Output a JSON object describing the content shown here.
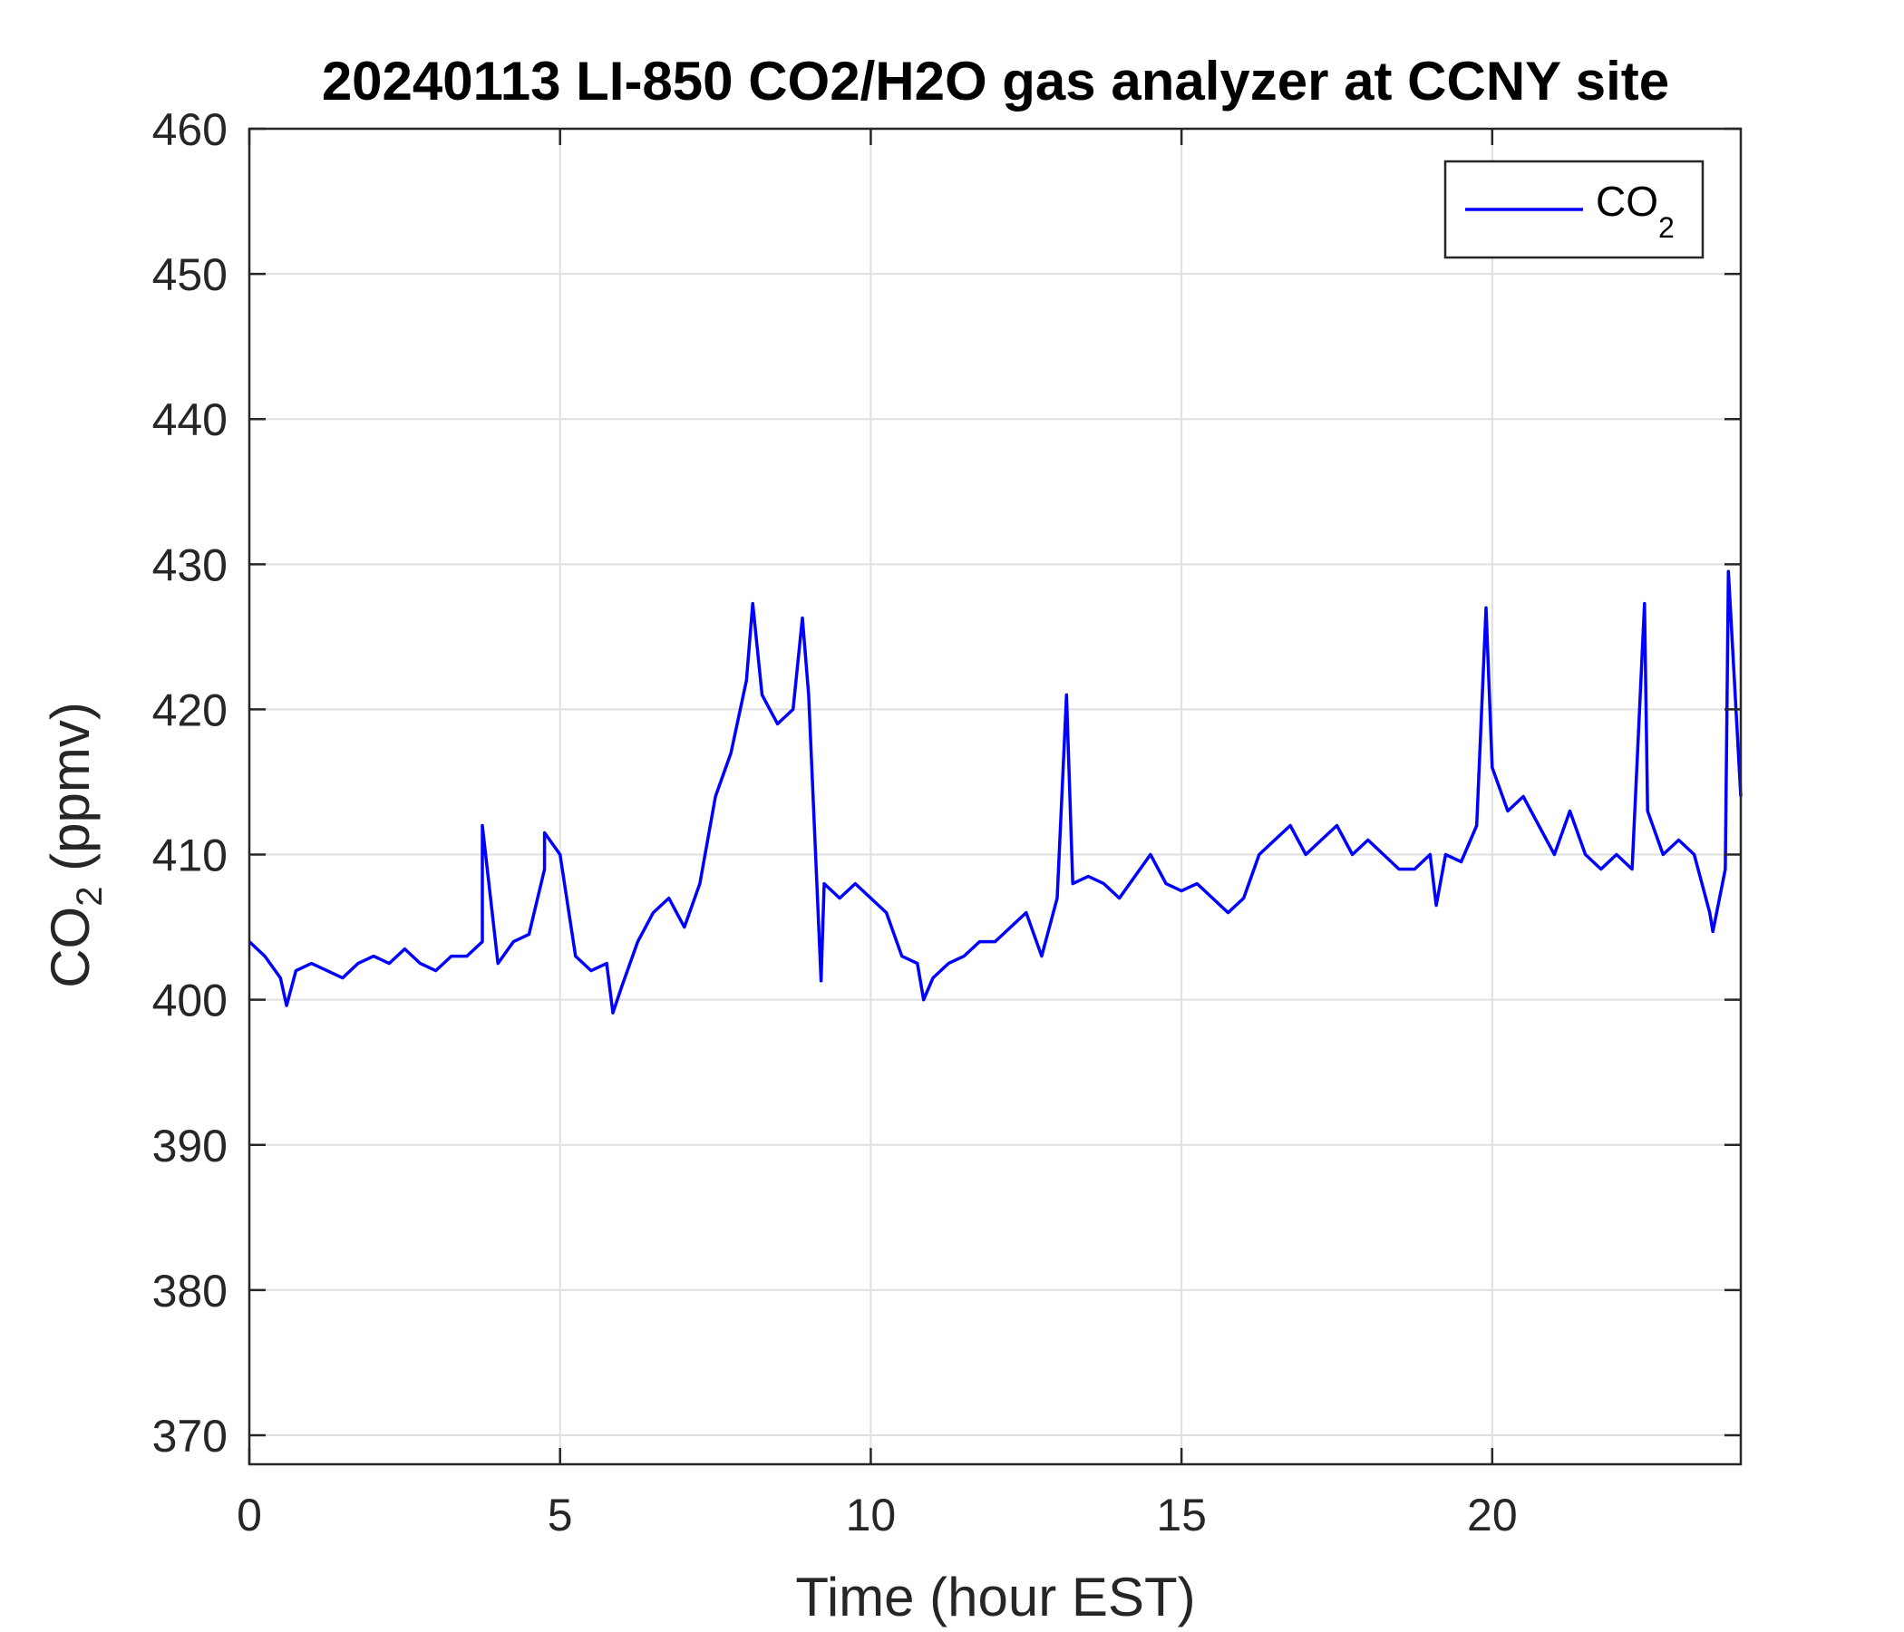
{
  "chart_data": {
    "type": "line",
    "title": "20240113 LI-850 CO2/H2O gas analyzer at CCNY site",
    "xlabel": "Time (hour EST)",
    "ylabel": {
      "main": "CO",
      "sub": "2",
      "rest": " (ppmv)"
    },
    "xlim": [
      0,
      24
    ],
    "ylim": [
      368,
      460
    ],
    "xticks": [
      "0",
      "5",
      "10",
      "15",
      "20"
    ],
    "yticks": [
      "370",
      "380",
      "390",
      "400",
      "410",
      "420",
      "430",
      "440",
      "450",
      "460"
    ],
    "grid": true,
    "legend_position": "top-right",
    "colors": {
      "series": "#0000ff",
      "axes": "#262626",
      "grid": "#dfdfdf"
    },
    "series": [
      {
        "name": "CO2",
        "legend": {
          "main": "CO",
          "sub": "2"
        },
        "x": [
          0.0,
          0.25,
          0.5,
          0.75,
          1.0,
          1.25,
          1.5,
          1.75,
          2.0,
          2.25,
          2.5,
          2.75,
          3.0,
          3.25,
          3.5,
          3.75,
          4.0,
          4.25,
          4.5,
          4.75,
          5.0,
          5.25,
          5.5,
          5.75,
          6.0,
          6.25,
          6.5,
          6.75,
          7.0,
          7.25,
          7.5,
          7.75,
          8.0,
          8.25,
          8.5,
          8.75,
          9.0,
          9.25,
          9.5,
          9.75,
          10.0,
          10.25,
          10.5,
          10.75,
          11.0,
          11.25,
          11.5,
          11.75,
          12.0,
          12.25,
          12.5,
          12.75,
          13.0,
          13.25,
          13.5,
          13.75,
          14.0,
          14.25,
          14.5,
          14.75,
          15.0,
          15.25,
          15.5,
          15.75,
          16.0,
          16.25,
          16.5,
          16.75,
          17.0,
          17.25,
          17.5,
          17.75,
          18.0,
          18.25,
          18.5,
          18.75,
          19.0,
          19.25,
          19.5,
          19.75,
          20.0,
          20.25,
          20.5,
          20.75,
          21.0,
          21.25,
          21.5,
          21.75,
          22.0,
          22.25,
          22.5,
          22.75,
          23.0,
          23.25,
          23.5,
          23.75,
          24.0
        ],
        "values": [
          404,
          403,
          401.5,
          402,
          402.5,
          402,
          401.5,
          402.5,
          403,
          402.5,
          403.5,
          402.5,
          402,
          403,
          403,
          404,
          402.5,
          404,
          404.5,
          409,
          410,
          403,
          402,
          402.5,
          401,
          404,
          406,
          407,
          405,
          408,
          414,
          417,
          422,
          421,
          419,
          420,
          421,
          408,
          407,
          408,
          407,
          406,
          403,
          402.5,
          401.5,
          402.5,
          403,
          404,
          404,
          405,
          406,
          403,
          407,
          408,
          408.5,
          408,
          407,
          408.5,
          410,
          408,
          407.5,
          408,
          407,
          406,
          407,
          410,
          411,
          412,
          410,
          411,
          412,
          410,
          411,
          410,
          409,
          409,
          410,
          410,
          409.5,
          412,
          416,
          413,
          414,
          412,
          410,
          413,
          410,
          409,
          410,
          409,
          413,
          410,
          411,
          410,
          406,
          409,
          414
        ],
        "peaks": [
          {
            "x": 3.75,
            "y": 412
          },
          {
            "x": 4.75,
            "y": 411.5
          },
          {
            "x": 8.1,
            "y": 427.3
          },
          {
            "x": 8.9,
            "y": 426.3
          },
          {
            "x": 13.15,
            "y": 421
          },
          {
            "x": 19.9,
            "y": 427
          },
          {
            "x": 22.45,
            "y": 427.3
          },
          {
            "x": 23.8,
            "y": 429.5
          }
        ],
        "dips": [
          {
            "x": 0.6,
            "y": 399.6
          },
          {
            "x": 5.85,
            "y": 399.1
          },
          {
            "x": 9.2,
            "y": 401.3
          },
          {
            "x": 10.85,
            "y": 400
          },
          {
            "x": 19.1,
            "y": 406.5
          },
          {
            "x": 23.55,
            "y": 404.7
          }
        ]
      }
    ]
  }
}
